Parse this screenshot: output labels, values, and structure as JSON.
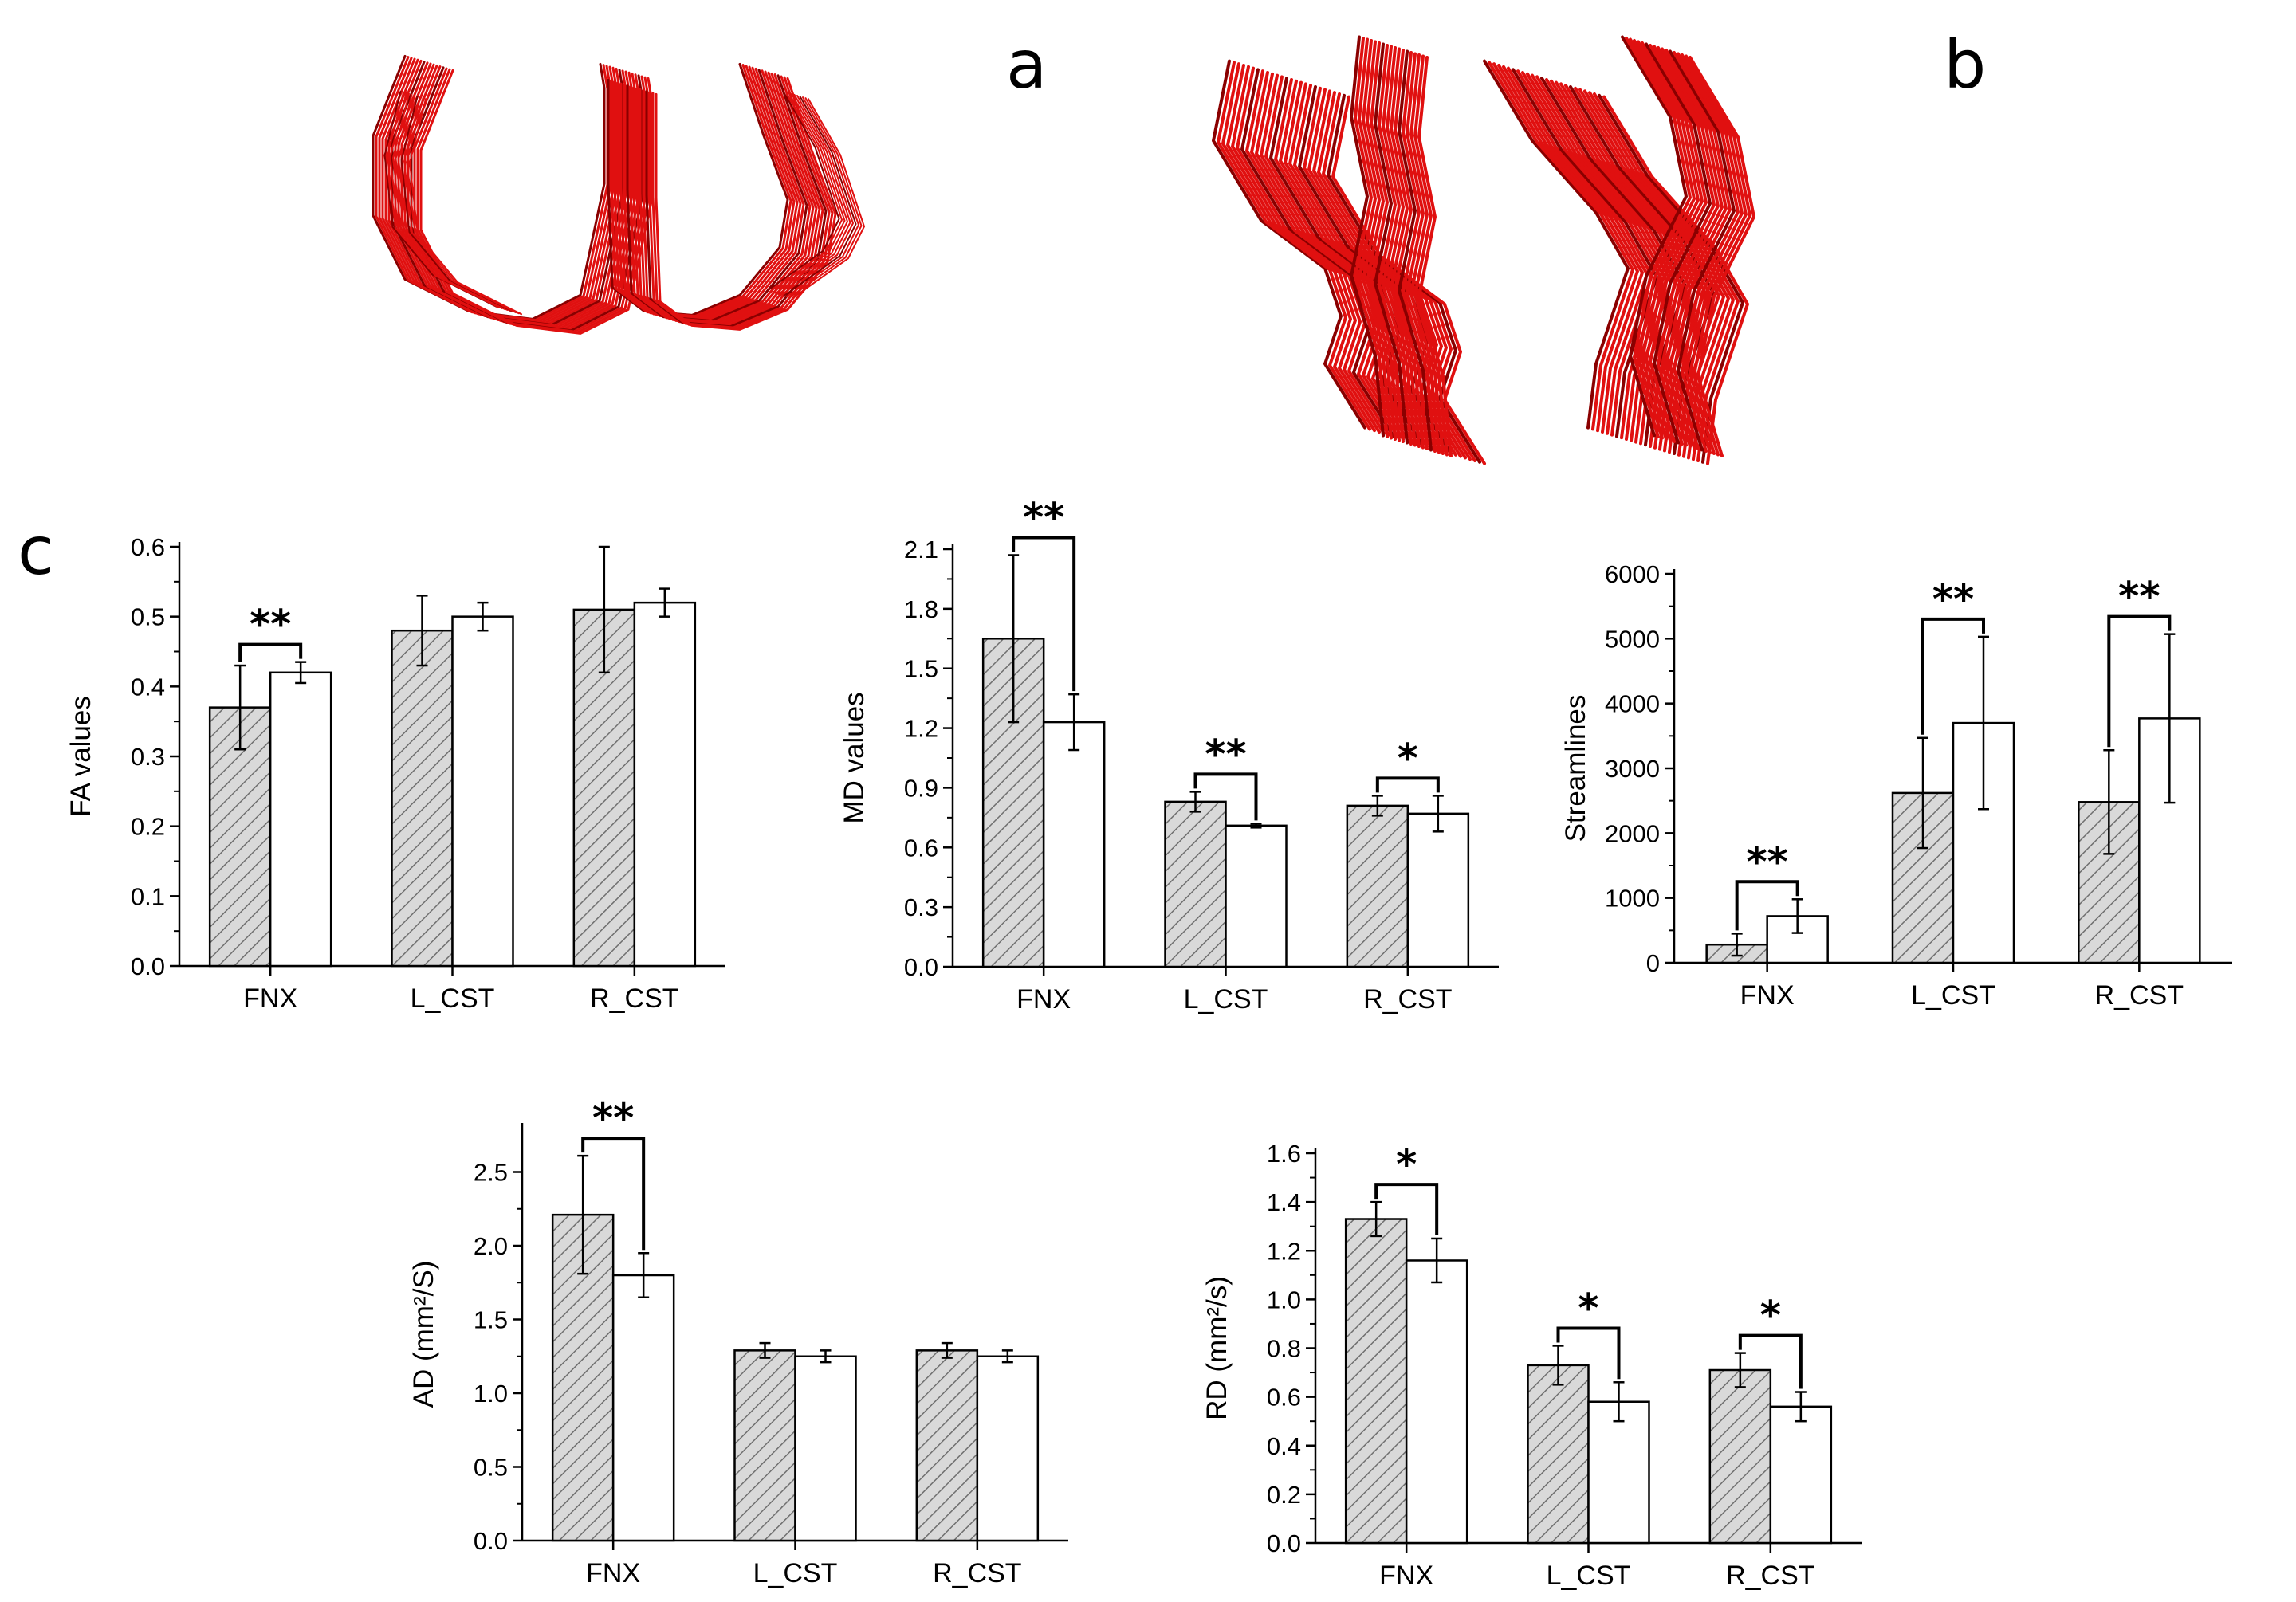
{
  "panels": {
    "a": "a",
    "b": "b",
    "c": "c"
  },
  "colors": {
    "tract": "#e01010",
    "tract_dark": "#8a0000",
    "hatch_fill": "#d9d9d9",
    "hatch_line": "#6f6f6f"
  },
  "chart_data": [
    {
      "type": "bar",
      "ylabel": "FA values",
      "categories": [
        "FNX",
        "L_CST",
        "R_CST"
      ],
      "ylim": [
        0,
        0.6
      ],
      "yticks": [
        "0.0",
        "0.1",
        "0.2",
        "0.3",
        "0.4",
        "0.5",
        "0.6"
      ],
      "series": [
        {
          "values": [
            0.37,
            0.48,
            0.51
          ],
          "errors": [
            0.06,
            0.05,
            0.09
          ],
          "style": "hatched"
        },
        {
          "values": [
            0.42,
            0.5,
            0.52
          ],
          "errors": [
            0.015,
            0.02,
            0.02
          ],
          "style": "open"
        }
      ],
      "significance": [
        {
          "category": 0,
          "label": "**"
        }
      ]
    },
    {
      "type": "bar",
      "ylabel": "MD values",
      "categories": [
        "FNX",
        "L_CST",
        "R_CST"
      ],
      "ylim": [
        0,
        2.1
      ],
      "yticks": [
        "0.0",
        "0.3",
        "0.6",
        "0.9",
        "1.2",
        "1.5",
        "1.8",
        "2.1"
      ],
      "series": [
        {
          "values": [
            1.65,
            0.83,
            0.81
          ],
          "errors": [
            0.42,
            0.05,
            0.05
          ],
          "style": "hatched"
        },
        {
          "values": [
            1.23,
            0.71,
            0.77
          ],
          "errors": [
            0.14,
            0.01,
            0.09
          ],
          "style": "open"
        }
      ],
      "significance": [
        {
          "category": 0,
          "label": "**"
        },
        {
          "category": 1,
          "label": "**"
        },
        {
          "category": 2,
          "label": "*"
        }
      ]
    },
    {
      "type": "bar",
      "ylabel": "Streamlines",
      "categories": [
        "FNX",
        "L_CST",
        "R_CST"
      ],
      "ylim": [
        0,
        6000
      ],
      "yticks": [
        "0",
        "1000",
        "2000",
        "3000",
        "4000",
        "5000",
        "6000"
      ],
      "series": [
        {
          "values": [
            280,
            2620,
            2480
          ],
          "errors": [
            170,
            850,
            800
          ],
          "style": "hatched"
        },
        {
          "values": [
            720,
            3700,
            3770
          ],
          "errors": [
            260,
            1330,
            1300
          ],
          "style": "open"
        }
      ],
      "significance": [
        {
          "category": 0,
          "label": "**"
        },
        {
          "category": 1,
          "label": "**"
        },
        {
          "category": 2,
          "label": "**"
        }
      ]
    },
    {
      "type": "bar",
      "ylabel": "AD (mm²/S)",
      "categories": [
        "FNX",
        "L_CST",
        "R_CST"
      ],
      "ylim": [
        0,
        2.8
      ],
      "yticks": [
        "0.0",
        "0.5",
        "1.0",
        "1.5",
        "2.0",
        "2.5"
      ],
      "series": [
        {
          "values": [
            2.21,
            1.29,
            1.29
          ],
          "errors": [
            0.4,
            0.05,
            0.05
          ],
          "style": "hatched"
        },
        {
          "values": [
            1.8,
            1.25,
            1.25
          ],
          "errors": [
            0.15,
            0.04,
            0.04
          ],
          "style": "open"
        }
      ],
      "significance": [
        {
          "category": 0,
          "label": "**"
        }
      ]
    },
    {
      "type": "bar",
      "ylabel": "RD (mm²/s)",
      "categories": [
        "FNX",
        "L_CST",
        "R_CST"
      ],
      "ylim": [
        0,
        1.6
      ],
      "yticks": [
        "0.0",
        "0.2",
        "0.4",
        "0.6",
        "0.8",
        "1.0",
        "1.2",
        "1.4",
        "1.6"
      ],
      "series": [
        {
          "values": [
            1.33,
            0.73,
            0.71
          ],
          "errors": [
            0.07,
            0.08,
            0.07
          ],
          "style": "hatched"
        },
        {
          "values": [
            1.16,
            0.58,
            0.56
          ],
          "errors": [
            0.09,
            0.08,
            0.06
          ],
          "style": "open"
        }
      ],
      "significance": [
        {
          "category": 0,
          "label": "*"
        },
        {
          "category": 1,
          "label": "*"
        },
        {
          "category": 2,
          "label": "*"
        }
      ]
    }
  ]
}
